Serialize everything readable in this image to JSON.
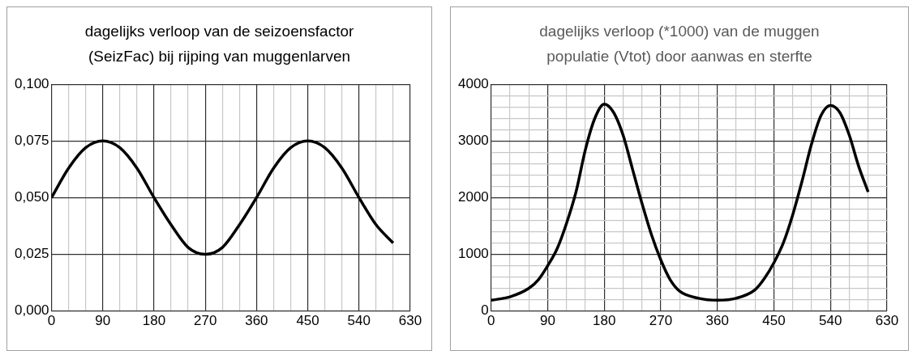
{
  "chart_data": [
    {
      "type": "line",
      "title": "dagelijks verloop van de seizoensfactor (SeizFac) bij rijping van muggenlarven",
      "x": [
        0,
        30,
        60,
        90,
        120,
        150,
        180,
        210,
        240,
        270,
        300,
        330,
        360,
        390,
        420,
        450,
        480,
        510,
        540,
        570,
        600
      ],
      "series": [
        {
          "color": "#000000",
          "values": [
            0.05,
            0.063,
            0.072,
            0.075,
            0.072,
            0.063,
            0.05,
            0.038,
            0.028,
            0.025,
            0.028,
            0.038,
            0.05,
            0.063,
            0.072,
            0.075,
            0.072,
            0.063,
            0.05,
            0.038,
            0.03
          ]
        }
      ],
      "xlim": [
        0,
        630
      ],
      "xticks": [
        0,
        {
          "value": 30,
          "label": null
        },
        {
          "value": 60,
          "label": null
        },
        90,
        {
          "value": 120,
          "label": null
        },
        {
          "value": 150,
          "label": null
        },
        180,
        {
          "value": 210,
          "label": null
        },
        {
          "value": 240,
          "label": null
        },
        270,
        {
          "value": 300,
          "label": null
        },
        {
          "value": 330,
          "label": null
        },
        360,
        {
          "value": 390,
          "label": null
        },
        {
          "value": 420,
          "label": null
        },
        450,
        {
          "value": 480,
          "label": null
        },
        {
          "value": 510,
          "label": null
        },
        540,
        {
          "value": 570,
          "label": null
        },
        {
          "value": 600,
          "label": null
        },
        630
      ],
      "ylim": [
        0,
        0.1
      ],
      "yticks": [
        {
          "value": 0,
          "label": "0,000"
        },
        {
          "value": 0.025,
          "label": "0,025"
        },
        {
          "value": 0.05,
          "label": "0,050"
        },
        {
          "value": 0.075,
          "label": "0,075"
        },
        {
          "value": 0.1,
          "label": "0,100"
        }
      ],
      "grid": true
    },
    {
      "type": "line",
      "title": "dagelijks verloop (*1000) van de muggen populatie (Vtot) door aanwas en sterfte",
      "x": [
        0,
        30,
        60,
        75,
        90,
        105,
        120,
        135,
        150,
        165,
        180,
        195,
        210,
        225,
        240,
        255,
        270,
        285,
        300,
        330,
        360,
        390,
        420,
        435,
        450,
        465,
        480,
        495,
        510,
        525,
        540,
        555,
        570,
        585,
        600
      ],
      "series": [
        {
          "color": "#000000",
          "values": [
            190,
            250,
            400,
            550,
            800,
            1100,
            1550,
            2100,
            2850,
            3400,
            3650,
            3500,
            3100,
            2500,
            1900,
            1350,
            900,
            550,
            350,
            225,
            190,
            225,
            375,
            575,
            850,
            1200,
            1700,
            2300,
            2950,
            3450,
            3625,
            3500,
            3100,
            2550,
            2100
          ]
        }
      ],
      "xlim": [
        0,
        630
      ],
      "xticks": [
        0,
        {
          "value": 30,
          "label": null
        },
        {
          "value": 60,
          "label": null
        },
        90,
        {
          "value": 120,
          "label": null
        },
        {
          "value": 150,
          "label": null
        },
        180,
        {
          "value": 210,
          "label": null
        },
        {
          "value": 240,
          "label": null
        },
        270,
        {
          "value": 300,
          "label": null
        },
        {
          "value": 330,
          "label": null
        },
        360,
        {
          "value": 390,
          "label": null
        },
        {
          "value": 420,
          "label": null
        },
        450,
        {
          "value": 480,
          "label": null
        },
        {
          "value": 510,
          "label": null
        },
        540,
        {
          "value": 570,
          "label": null
        },
        {
          "value": 600,
          "label": null
        },
        630
      ],
      "ylim": [
        0,
        4000
      ],
      "yticks": [
        0,
        {
          "value": 200,
          "label": null
        },
        {
          "value": 400,
          "label": null
        },
        {
          "value": 600,
          "label": null
        },
        {
          "value": 800,
          "label": null
        },
        1000,
        {
          "value": 1200,
          "label": null
        },
        {
          "value": 1400,
          "label": null
        },
        {
          "value": 1600,
          "label": null
        },
        {
          "value": 1800,
          "label": null
        },
        2000,
        {
          "value": 2200,
          "label": null
        },
        {
          "value": 2400,
          "label": null
        },
        {
          "value": 2600,
          "label": null
        },
        {
          "value": 2800,
          "label": null
        },
        3000,
        {
          "value": 3200,
          "label": null
        },
        {
          "value": 3400,
          "label": null
        },
        {
          "value": 3600,
          "label": null
        },
        {
          "value": 3800,
          "label": null
        },
        4000
      ],
      "grid": true
    }
  ]
}
